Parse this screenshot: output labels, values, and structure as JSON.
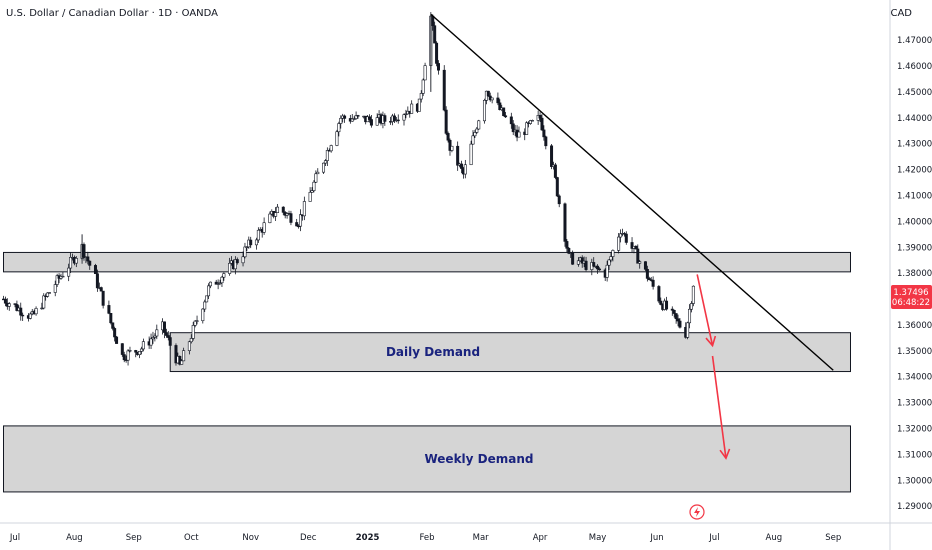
{
  "header": {
    "symbol_title": "U.S. Dollar / Canadian Dollar · 1D · OANDA",
    "currency": "CAD"
  },
  "price_tag": {
    "price": "1.37496",
    "countdown": "06:48:22",
    "color": "#f23645"
  },
  "colors": {
    "bull": "#131722",
    "bear": "#131722",
    "zone_fill": "#c7c7c7",
    "zone_stroke": "#131722",
    "trendline": "#000000",
    "projection_arrow": "#f23645",
    "zone_label": "#1a237e"
  },
  "icons": {
    "snapshot": "flash-circle-icon"
  },
  "chart_data": {
    "type": "candlestick",
    "title": "U.S. Dollar / Canadian Dollar · 1D · OANDA",
    "ylabel": "CAD",
    "ylim": [
      1.2835,
      1.4855
    ],
    "y_ticks": [
      "1.47000",
      "1.46000",
      "1.45000",
      "1.44000",
      "1.43000",
      "1.42000",
      "1.41000",
      "1.40000",
      "1.39000",
      "1.38000",
      "1.37000",
      "1.36000",
      "1.35000",
      "1.34000",
      "1.33000",
      "1.32000",
      "1.31000",
      "1.30000",
      "1.29000"
    ],
    "x_ticks": [
      "Jul",
      "Aug",
      "Sep",
      "Oct",
      "Nov",
      "Dec",
      "2025",
      "Feb",
      "Mar",
      "Apr",
      "May",
      "Jun",
      "Jul",
      "Aug",
      "Sep"
    ],
    "x_tick_dates": [
      "2024-07-01",
      "2024-08-01",
      "2024-09-01",
      "2024-10-01",
      "2024-11-01",
      "2024-12-01",
      "2025-01-01",
      "2025-02-01",
      "2025-03-01",
      "2025-04-01",
      "2025-05-01",
      "2025-06-01",
      "2025-07-01",
      "2025-08-01",
      "2025-09-01"
    ],
    "x_range": [
      "2024-07-01",
      "2025-09-10"
    ],
    "grid": false,
    "legend": "none",
    "anchor_path": [
      [
        "2024-06-25",
        1.37
      ],
      [
        "2024-07-10",
        1.363
      ],
      [
        "2024-07-22",
        1.376
      ],
      [
        "2024-08-05",
        1.39
      ],
      [
        "2024-08-12",
        1.378
      ],
      [
        "2024-08-26",
        1.348
      ],
      [
        "2024-09-05",
        1.351
      ],
      [
        "2024-09-16",
        1.359
      ],
      [
        "2024-09-25",
        1.344
      ],
      [
        "2024-10-10",
        1.374
      ],
      [
        "2024-10-25",
        1.385
      ],
      [
        "2024-11-15",
        1.405
      ],
      [
        "2024-11-26",
        1.4
      ],
      [
        "2024-12-18",
        1.44
      ],
      [
        "2025-01-10",
        1.439
      ],
      [
        "2025-01-28",
        1.445
      ],
      [
        "2025-02-03",
        1.479
      ],
      [
        "2025-02-12",
        1.43
      ],
      [
        "2025-02-20",
        1.418
      ],
      [
        "2025-03-04",
        1.451
      ],
      [
        "2025-03-20",
        1.433
      ],
      [
        "2025-04-01",
        1.44
      ],
      [
        "2025-04-08",
        1.42
      ],
      [
        "2025-04-16",
        1.386
      ],
      [
        "2025-05-05",
        1.38
      ],
      [
        "2025-05-13",
        1.397
      ],
      [
        "2025-05-22",
        1.386
      ],
      [
        "2025-06-03",
        1.369
      ],
      [
        "2025-06-16",
        1.357
      ],
      [
        "2025-06-20",
        1.375
      ]
    ],
    "zones": [
      {
        "type": "resistance",
        "label": "",
        "top": 1.388,
        "bottom": 1.3805,
        "from": "2024-06-25",
        "to": "2025-09-10"
      },
      {
        "type": "demand",
        "label": "Daily Demand",
        "top": 1.357,
        "bottom": 1.342,
        "from": "2024-09-20",
        "to": "2025-09-10"
      },
      {
        "type": "demand",
        "label": "Weekly Demand",
        "top": 1.321,
        "bottom": 1.2955,
        "from": "2024-06-25",
        "to": "2025-09-10"
      }
    ],
    "trendline": {
      "from": [
        "2025-02-03",
        1.48
      ],
      "to": [
        "2025-09-01",
        1.3425
      ]
    },
    "projection_arrows": [
      {
        "from": [
          "2025-06-22",
          1.3795
        ],
        "to": [
          "2025-06-30",
          1.352
        ]
      },
      {
        "from": [
          "2025-06-30",
          1.348
        ],
        "to": [
          "2025-07-07",
          1.3085
        ]
      }
    ],
    "last_price": 1.37496
  }
}
